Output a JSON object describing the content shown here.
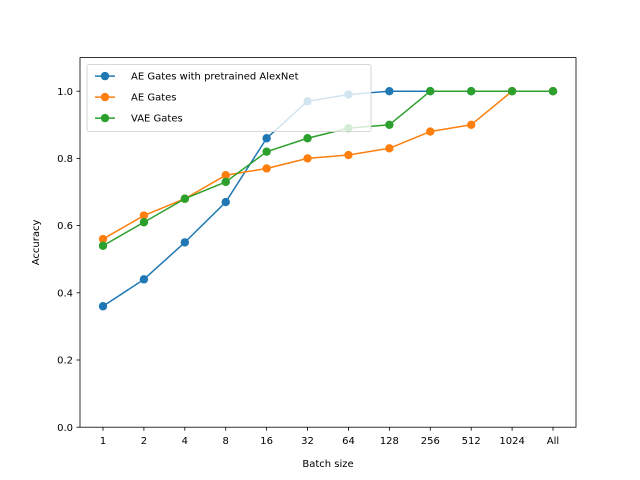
{
  "chart_data": {
    "type": "line",
    "title": "",
    "xlabel": "Batch size",
    "ylabel": "Accuracy",
    "categories": [
      "1",
      "2",
      "4",
      "8",
      "16",
      "32",
      "64",
      "128",
      "256",
      "512",
      "1024",
      "All"
    ],
    "ylim": [
      0,
      1.1
    ],
    "yticks": [
      "0.0",
      "0.2",
      "0.4",
      "0.6",
      "0.8",
      "1.0"
    ],
    "grid": false,
    "legend_position": "upper-left",
    "series": [
      {
        "name": "AE Gates with pretrained AlexNet",
        "color": "#1f77b4",
        "values": [
          0.36,
          0.44,
          0.55,
          0.67,
          0.86,
          0.97,
          0.99,
          1.0,
          1.0,
          1.0,
          1.0,
          1.0
        ]
      },
      {
        "name": "AE Gates",
        "color": "#ff7f0e",
        "values": [
          0.56,
          0.63,
          0.68,
          0.75,
          0.77,
          0.8,
          0.81,
          0.83,
          0.88,
          0.9,
          1.0,
          1.0
        ]
      },
      {
        "name": "VAE Gates",
        "color": "#2ca02c",
        "values": [
          0.54,
          0.61,
          0.68,
          0.73,
          0.82,
          0.86,
          0.89,
          0.9,
          1.0,
          1.0,
          1.0,
          1.0
        ]
      }
    ]
  }
}
